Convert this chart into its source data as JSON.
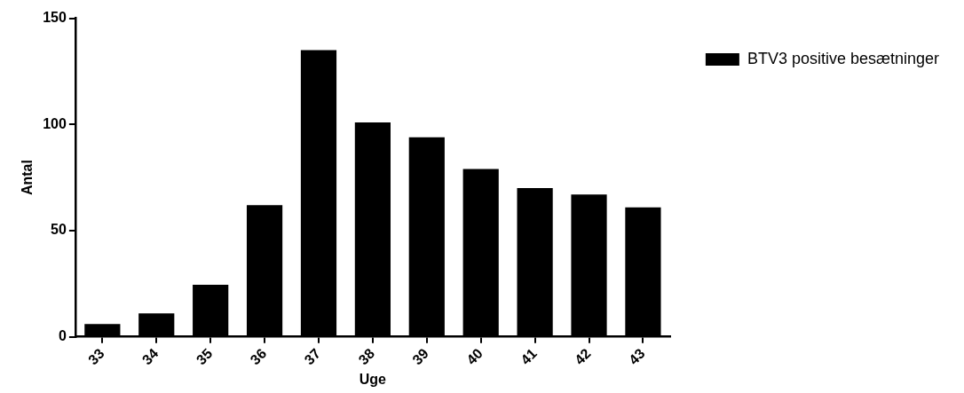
{
  "chart_data": {
    "type": "bar",
    "xlabel": "Uge",
    "ylabel": "Antal",
    "categories": [
      "33",
      "34",
      "35",
      "36",
      "37",
      "38",
      "39",
      "40",
      "41",
      "42",
      "43"
    ],
    "series": [
      {
        "name": "BTV3 positive besætninger",
        "color": "#000000",
        "values": [
          6,
          11,
          24.5,
          62,
          135,
          101,
          94,
          79,
          70,
          67,
          61
        ]
      }
    ],
    "ylim": [
      0,
      150
    ],
    "yticks": [
      0,
      50,
      100,
      150
    ],
    "grid": false,
    "legend": "top right"
  }
}
